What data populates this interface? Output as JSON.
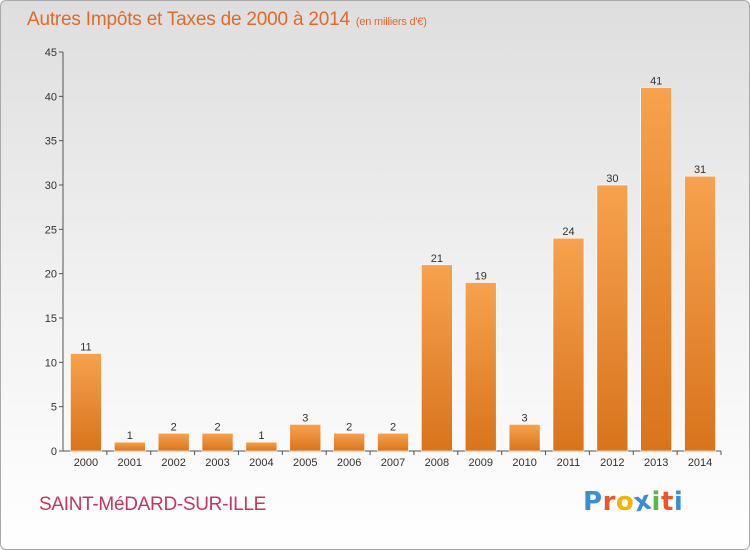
{
  "title": "Autres Impôts et Taxes de 2000 à 2014",
  "subtitle": "(en milliers d'€)",
  "place": "SAINT-MéDARD-SUR-ILLE",
  "brand": {
    "letters": [
      "P",
      "r",
      "o",
      "x",
      "i",
      "t",
      "i"
    ],
    "colors": [
      "#3a8ed8",
      "#e8582c",
      "#f5b400",
      "#3a8ed8",
      "#59b947",
      "#e8582c",
      "#3a8ed8"
    ]
  },
  "colors": {
    "bar_top": "#f7a24e",
    "bar_bottom": "#d8741c",
    "axis": "#555555",
    "grid": "#cccccc"
  },
  "chart_data": {
    "type": "bar",
    "categories": [
      "2000",
      "2001",
      "2002",
      "2003",
      "2004",
      "2005",
      "2006",
      "2007",
      "2008",
      "2009",
      "2010",
      "2011",
      "2012",
      "2013",
      "2014"
    ],
    "values": [
      11,
      1,
      2,
      2,
      1,
      3,
      2,
      2,
      21,
      19,
      3,
      24,
      30,
      41,
      31
    ],
    "data_labels": [
      "11",
      "1",
      "2",
      "2",
      "1",
      "3",
      "2",
      "2",
      "21",
      "19",
      "3",
      "24",
      "30",
      "41",
      "31"
    ],
    "title": "Autres Impôts et Taxes de 2000 à 2014",
    "subtitle": "(en milliers d'€)",
    "xlabel": "",
    "ylabel": "",
    "ylim": [
      0,
      45
    ],
    "yticks": [
      0,
      5,
      10,
      15,
      20,
      25,
      30,
      35,
      40,
      45
    ],
    "grid": false,
    "legend": "none"
  }
}
